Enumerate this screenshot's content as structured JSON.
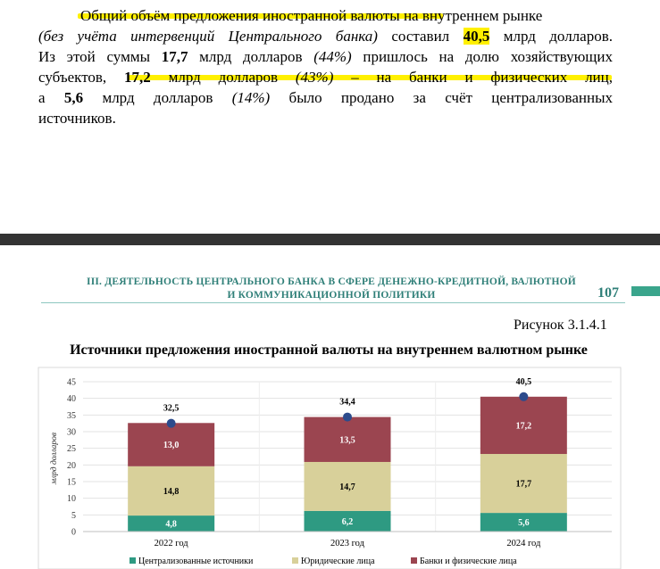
{
  "paragraph": {
    "line1_a": "Общий объём предложения иностранной валюты",
    "line1_b": " на внутреннем рынке",
    "line2_a": "(без учёта интервенций Центрального банка)",
    "line2_b": " составил ",
    "line2_c": "40,5",
    "line2_d": " млрд долларов.",
    "line3_a": "Из этой суммы ",
    "line3_b": "17,7",
    "line3_c": " млрд долларов ",
    "line3_d": "(44%)",
    "line3_e": " пришлось на долю хозяйствующих",
    "line4_a": "субъектов, ",
    "line4_b": "17,2",
    "line4_c": " млрд долларов ",
    "line4_d": "(43%)",
    "line4_e": " – на банки и физических лиц,",
    "line5_a": "а ",
    "line5_b": "5,6",
    "line5_c": " млрд долларов ",
    "line5_d": "(14%)",
    "line5_e": " было продано за счёт централизованных",
    "line6": "источников."
  },
  "header": {
    "line1": "III. ДЕЯТЕЛЬНОСТЬ ЦЕНТРАЛЬНОГО БАНКА В СФЕРЕ ДЕНЕЖНО-КРЕДИТНОЙ, ВАЛЮТНОЙ",
    "line2": "И КОММУНИКАЦИОННОЙ ПОЛИТИКИ",
    "page_number": "107"
  },
  "figure_label": "Рисунок 3.1.4.1",
  "figure_title": "Источники предложения иностранной валюты на внутреннем валютном рынке",
  "colors": {
    "centralized": "#2e9a82",
    "legal": "#d8d09a",
    "banks": "#9b4550",
    "total_marker": "#2c4b8c",
    "highlight": "#fff000",
    "header_text": "#2f7f78"
  },
  "chart_data": {
    "type": "bar",
    "stacked": true,
    "categories": [
      "2022 год",
      "2023 год",
      "2024 год"
    ],
    "series": [
      {
        "name": "Централизованные  источники",
        "values": [
          4.8,
          6.2,
          5.6
        ],
        "labels": [
          "4,8",
          "6,2",
          "5,6"
        ]
      },
      {
        "name": "Юридические  лица",
        "values": [
          14.8,
          14.7,
          17.7
        ],
        "labels": [
          "14,8",
          "14,7",
          "17,7"
        ]
      },
      {
        "name": "Банки и физические  лица",
        "values": [
          13.0,
          13.5,
          17.2
        ],
        "labels": [
          "13,0",
          "13,5",
          "17,2"
        ]
      }
    ],
    "totals": [
      32.5,
      34.4,
      40.5
    ],
    "total_labels": [
      "32,5",
      "34,4",
      "40,5"
    ],
    "ylabel": "млрд долларов",
    "ylim": [
      0,
      45
    ],
    "yticks": [
      0,
      5,
      10,
      15,
      20,
      25,
      30,
      35,
      40,
      45
    ],
    "grid": true,
    "legend_position": "bottom"
  }
}
